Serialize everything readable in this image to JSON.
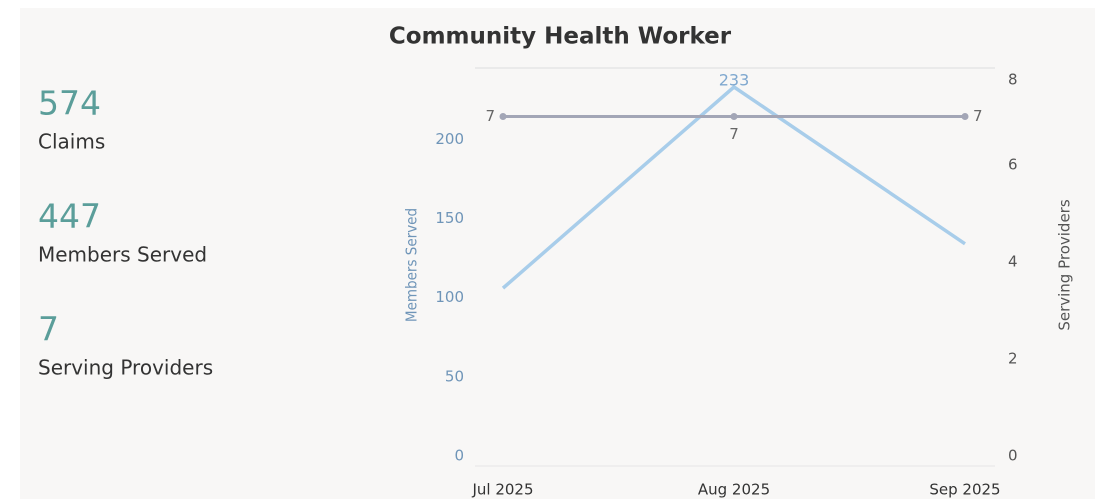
{
  "kpis": [
    {
      "value": "574",
      "label": "Claims"
    },
    {
      "value": "447",
      "label": "Members Served"
    },
    {
      "value": "7",
      "label": "Serving Providers"
    }
  ],
  "chart_data": {
    "type": "line",
    "title": "Community Health Worker",
    "categories": [
      "Jul 2025",
      "Aug 2025",
      "Sep 2025"
    ],
    "series": [
      {
        "name": "Members Served",
        "color": "#a8cdea",
        "values": [
          106,
          233,
          134
        ],
        "value_labels": [
          null,
          "233",
          null
        ]
      },
      {
        "name": "Serving Providers",
        "color": "#a3a6b6",
        "values": [
          7,
          7,
          7
        ],
        "axis": "y2"
      }
    ],
    "ylabel": "Members Served",
    "y2label": "Serving Providers",
    "ylim": [
      0,
      245
    ],
    "yticks": [
      0,
      50,
      100,
      150,
      200
    ],
    "y2lim": [
      0,
      8
    ],
    "y2ticks": [
      0,
      2,
      4,
      6,
      8
    ],
    "grid": false
  }
}
